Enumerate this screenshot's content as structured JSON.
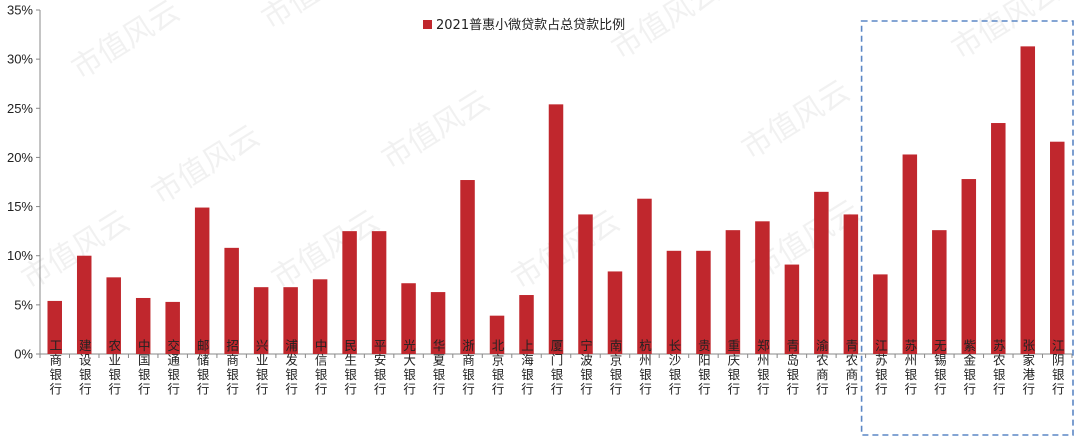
{
  "chart_data": {
    "type": "bar",
    "categories": [
      "工商银行",
      "建设银行",
      "农业银行",
      "中国银行",
      "交通银行",
      "邮储银行",
      "招商银行",
      "兴业银行",
      "浦发银行",
      "中信银行",
      "民生银行",
      "平安银行",
      "光大银行",
      "华夏银行",
      "浙商银行",
      "北京银行",
      "上海银行",
      "厦门银行",
      "宁波银行",
      "南京银行",
      "杭州银行",
      "长沙银行",
      "贵阳银行",
      "重庆银行",
      "郑州银行",
      "青岛银行",
      "渝农商行",
      "青农商行",
      "江苏银行",
      "苏州银行",
      "无锡银行",
      "紫金银行",
      "苏农银行",
      "张家港行",
      "江阴银行"
    ],
    "series": [
      {
        "name": "2021普惠小微贷款占总贷款比例",
        "color": "#c0272d",
        "values": [
          5.4,
          10.0,
          7.8,
          5.7,
          5.3,
          14.9,
          10.8,
          6.8,
          6.8,
          7.6,
          12.5,
          12.5,
          7.2,
          6.3,
          17.7,
          3.9,
          6.0,
          25.4,
          14.2,
          8.4,
          15.8,
          10.5,
          10.5,
          12.6,
          13.5,
          9.1,
          16.5,
          14.2,
          8.1,
          20.3,
          12.6,
          17.8,
          23.5,
          31.3,
          21.6
        ]
      }
    ],
    "yticks": [
      "0%",
      "5%",
      "10%",
      "15%",
      "20%",
      "25%",
      "30%",
      "35%"
    ],
    "ylim": [
      0,
      35
    ],
    "legend_position": "top",
    "highlight_range": [
      "江苏银行",
      "江阴银行"
    ],
    "highlight_color": "#5b87c5"
  },
  "watermark": "市值风云"
}
